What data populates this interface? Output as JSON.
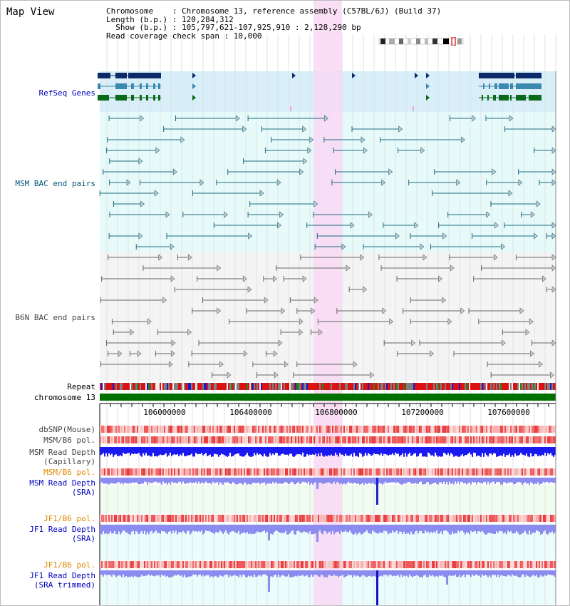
{
  "header": {
    "title": "Map View",
    "info_line1": "Chromosome    : Chromosome 13, reference assembly (C57BL/6J) (Build 37)",
    "info_line2": "Length (b.p.) : 120,284,312",
    "info_line3": "  Show (b.p.) : 105,797,621-107,925,910 : 2,128,290 bp",
    "info_line4": "Read coverage check span : 10,000"
  },
  "tracks": {
    "refseq": "RefSeq Genes",
    "msm_bac": "MSM BAC end pairs",
    "b6n_bac": "B6N BAC end pairs",
    "repeat": "Repeat",
    "chromosome": "chromosome 13",
    "dbsnp": "dbSNP(Mouse)",
    "msm_b6_pol_1": "MSM/B6 pol.",
    "msm_depth_cap_1": "MSM Read Depth",
    "msm_depth_cap_2": "(Capillary)",
    "msm_b6_pol_2": "MSM/B6 pol.",
    "msm_depth_sra_1": "MSM Read Depth",
    "msm_depth_sra_2": "(SRA)",
    "jf1_b6_pol_1": "JF1/B6 pol.",
    "jf1_depth_sra_1": "JF1 Read Depth",
    "jf1_depth_sra_2": "(SRA)",
    "jf1_b6_pol_2": "JF1/B6 pol.",
    "jf1_depth_trim_1": "JF1 Read Depth",
    "jf1_depth_trim_2": "(SRA trimmed)"
  },
  "axis": {
    "ticks": [
      "106000000",
      "106400000",
      "106800000",
      "107200000",
      "107600000"
    ]
  },
  "colors": {
    "highlight": "#f8d8f4",
    "refseq_bg": "#d8eef8",
    "msm_bg": "#e6fafa",
    "b6n_bg": "#f4f4f4",
    "chromosome": "#007000",
    "depth_blue": "#1a1af0",
    "depth_light": "#8c8cf0"
  }
}
